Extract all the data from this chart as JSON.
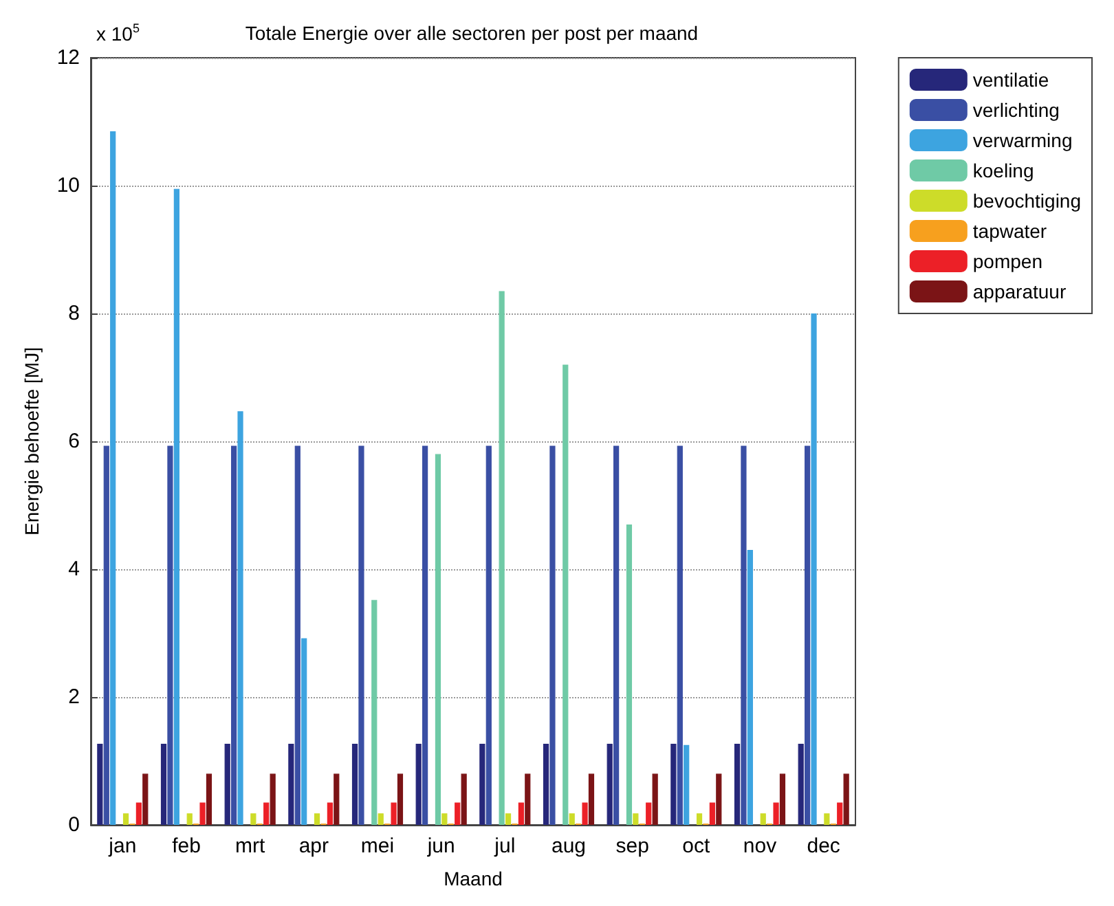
{
  "chart_data": {
    "type": "bar",
    "title": "Totale Energie over alle sectoren per post per maand",
    "xlabel": "Maand",
    "ylabel": "Energie behoefte [MJ]",
    "annotations": [
      "x 10$^{5}$"
    ],
    "categories": [
      "jan",
      "feb",
      "mrt",
      "apr",
      "mei",
      "jun",
      "jul",
      "aug",
      "sep",
      "oct",
      "nov",
      "dec"
    ],
    "series": [
      {
        "name": "ventilatie",
        "color": "#26277a",
        "values": [
          1.27,
          1.27,
          1.27,
          1.27,
          1.27,
          1.27,
          1.27,
          1.27,
          1.27,
          1.27,
          1.27,
          1.27
        ]
      },
      {
        "name": "verlichting",
        "color": "#3a4fa4",
        "values": [
          5.93,
          5.93,
          5.93,
          5.93,
          5.93,
          5.93,
          5.93,
          5.93,
          5.93,
          5.93,
          5.93,
          5.93
        ]
      },
      {
        "name": "verwarming",
        "color": "#3da4e0",
        "values": [
          10.85,
          9.95,
          6.47,
          2.92,
          null,
          null,
          null,
          null,
          null,
          1.25,
          4.3,
          8.0
        ]
      },
      {
        "name": "koeling",
        "color": "#6fcaa6",
        "values": [
          null,
          null,
          null,
          null,
          3.52,
          5.8,
          8.35,
          7.2,
          4.7,
          null,
          null,
          null
        ]
      },
      {
        "name": "bevochtiging",
        "color": "#cddc29",
        "values": [
          0.18,
          0.18,
          0.18,
          0.18,
          0.18,
          0.18,
          0.18,
          0.18,
          0.18,
          0.18,
          0.18,
          0.18
        ]
      },
      {
        "name": "tapwater",
        "color": "#f7a01e",
        "values": [
          0.02,
          0.02,
          0.02,
          0.02,
          0.02,
          0.02,
          0.02,
          0.02,
          0.02,
          0.02,
          0.02,
          0.02
        ]
      },
      {
        "name": "pompen",
        "color": "#ec2027",
        "values": [
          0.35,
          0.35,
          0.35,
          0.35,
          0.35,
          0.35,
          0.35,
          0.35,
          0.35,
          0.35,
          0.35,
          0.35
        ]
      },
      {
        "name": "apparatuur",
        "color": "#7b1416",
        "values": [
          0.8,
          0.8,
          0.8,
          0.8,
          0.8,
          0.8,
          0.8,
          0.8,
          0.8,
          0.8,
          0.8,
          0.8
        ]
      }
    ],
    "ylim": [
      0,
      12
    ],
    "yticks": [
      0,
      2,
      4,
      6,
      8,
      10,
      12
    ],
    "grid": "y",
    "legend": "top right"
  }
}
